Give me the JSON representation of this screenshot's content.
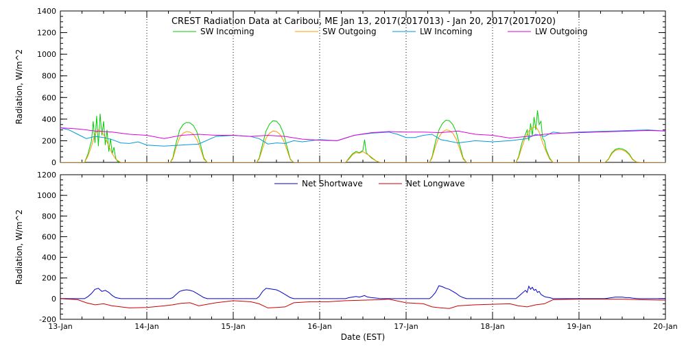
{
  "chart_data": [
    {
      "type": "line",
      "title": "CREST Radiation Data at Caribou, ME   Jan 13, 2017(2017013) - Jan 20, 2017(2017020)",
      "xlabel": "",
      "ylabel": "Radiation, W/m^2",
      "ylim": [
        0,
        1400
      ],
      "yticks": [
        "0",
        "200",
        "400",
        "600",
        "800",
        "1000",
        "1200",
        "1400"
      ],
      "xlim": [
        0,
        7
      ],
      "grid": "dotted vertical lines at day boundaries",
      "legend_position": "top",
      "series": [
        {
          "name": "SW Incoming",
          "color": "#00cc00",
          "x": [
            0,
            0.28,
            0.32,
            0.36,
            0.38,
            0.4,
            0.42,
            0.44,
            0.46,
            0.48,
            0.5,
            0.52,
            0.54,
            0.56,
            0.58,
            0.6,
            0.62,
            0.64,
            0.66,
            0.7,
            1.27,
            1.3,
            1.34,
            1.38,
            1.42,
            1.46,
            1.5,
            1.54,
            1.58,
            1.62,
            1.66,
            1.7,
            2.27,
            2.3,
            2.34,
            2.38,
            2.42,
            2.46,
            2.5,
            2.54,
            2.58,
            2.62,
            2.66,
            2.7,
            3.3,
            3.34,
            3.38,
            3.42,
            3.46,
            3.5,
            3.52,
            3.54,
            3.56,
            3.6,
            3.66,
            3.7,
            4.27,
            4.3,
            4.34,
            4.38,
            4.42,
            4.46,
            4.5,
            4.54,
            4.58,
            4.62,
            4.66,
            4.7,
            5.27,
            5.3,
            5.34,
            5.38,
            5.4,
            5.42,
            5.44,
            5.46,
            5.48,
            5.5,
            5.52,
            5.54,
            5.56,
            5.58,
            5.6,
            5.62,
            5.66,
            5.7,
            6.3,
            6.34,
            6.38,
            6.42,
            6.46,
            6.5,
            6.54,
            6.58,
            6.62,
            6.66,
            6.7,
            7
          ],
          "y": [
            0,
            0,
            80,
            200,
            380,
            180,
            430,
            150,
            450,
            250,
            380,
            160,
            300,
            100,
            220,
            80,
            140,
            40,
            10,
            0,
            0,
            40,
            180,
            300,
            350,
            370,
            365,
            340,
            280,
            170,
            40,
            0,
            0,
            40,
            170,
            290,
            355,
            385,
            380,
            345,
            270,
            150,
            30,
            0,
            0,
            40,
            80,
            100,
            90,
            110,
            210,
            90,
            70,
            40,
            10,
            0,
            0,
            50,
            190,
            300,
            360,
            390,
            385,
            350,
            280,
            160,
            40,
            0,
            0,
            50,
            180,
            260,
            300,
            200,
            360,
            250,
            420,
            300,
            480,
            350,
            380,
            220,
            200,
            120,
            40,
            0,
            0,
            30,
            90,
            120,
            130,
            125,
            110,
            80,
            30,
            5,
            0,
            0
          ]
        },
        {
          "name": "SW Outgoing",
          "color": "#ff9900",
          "x": [
            0,
            0.28,
            0.32,
            0.36,
            0.4,
            0.44,
            0.48,
            0.52,
            0.56,
            0.6,
            0.64,
            0.7,
            1.27,
            1.3,
            1.34,
            1.38,
            1.42,
            1.46,
            1.5,
            1.54,
            1.58,
            1.62,
            1.66,
            1.7,
            2.27,
            2.3,
            2.34,
            2.38,
            2.42,
            2.46,
            2.5,
            2.54,
            2.58,
            2.62,
            2.66,
            2.7,
            3.3,
            3.34,
            3.38,
            3.42,
            3.46,
            3.5,
            3.54,
            3.58,
            3.62,
            3.66,
            3.7,
            4.27,
            4.3,
            4.34,
            4.38,
            4.42,
            4.46,
            4.5,
            4.54,
            4.58,
            4.62,
            4.66,
            4.7,
            5.27,
            5.3,
            5.34,
            5.38,
            5.42,
            5.46,
            5.5,
            5.54,
            5.58,
            5.62,
            5.66,
            5.7,
            6.3,
            6.34,
            6.38,
            6.42,
            6.46,
            6.5,
            6.54,
            6.58,
            6.62,
            6.66,
            6.7,
            7
          ],
          "y": [
            0,
            0,
            60,
            150,
            260,
            300,
            280,
            230,
            150,
            80,
            30,
            0,
            0,
            30,
            140,
            230,
            270,
            285,
            280,
            260,
            210,
            130,
            30,
            0,
            0,
            30,
            130,
            225,
            270,
            290,
            285,
            260,
            205,
            120,
            25,
            0,
            0,
            30,
            70,
            90,
            85,
            100,
            80,
            60,
            35,
            10,
            0,
            0,
            40,
            150,
            235,
            280,
            300,
            295,
            270,
            215,
            125,
            30,
            0,
            0,
            40,
            140,
            230,
            290,
            320,
            330,
            280,
            180,
            100,
            30,
            0,
            0,
            25,
            80,
            110,
            120,
            115,
            100,
            70,
            25,
            5,
            0,
            0
          ]
        },
        {
          "name": "LW Incoming",
          "color": "#0099dd",
          "x": [
            0,
            0.1,
            0.2,
            0.3,
            0.4,
            0.5,
            0.6,
            0.7,
            0.8,
            0.9,
            1.0,
            1.2,
            1.4,
            1.6,
            1.8,
            2.0,
            2.2,
            2.3,
            2.4,
            2.5,
            2.6,
            2.7,
            2.8,
            3.0,
            3.2,
            3.4,
            3.6,
            3.8,
            3.9,
            4.0,
            4.1,
            4.2,
            4.3,
            4.4,
            4.6,
            4.8,
            5.0,
            5.2,
            5.4,
            5.5,
            5.6,
            5.7,
            5.8,
            6.0,
            6.2,
            6.4,
            6.6,
            6.8,
            7.0
          ],
          "y": [
            320,
            300,
            260,
            220,
            240,
            230,
            210,
            180,
            175,
            190,
            160,
            150,
            160,
            170,
            240,
            250,
            240,
            220,
            170,
            180,
            175,
            200,
            190,
            210,
            200,
            250,
            270,
            280,
            260,
            230,
            230,
            250,
            260,
            210,
            180,
            200,
            190,
            200,
            220,
            260,
            240,
            280,
            270,
            280,
            285,
            290,
            295,
            300,
            290
          ]
        },
        {
          "name": "LW Outgoing",
          "color": "#dd00dd",
          "x": [
            0,
            0.2,
            0.4,
            0.6,
            0.8,
            1.0,
            1.2,
            1.4,
            1.6,
            1.8,
            2.0,
            2.2,
            2.4,
            2.6,
            2.8,
            3.0,
            3.2,
            3.4,
            3.6,
            3.8,
            4.0,
            4.2,
            4.4,
            4.6,
            4.8,
            5.0,
            5.2,
            5.4,
            5.6,
            5.8,
            6.0,
            6.2,
            6.4,
            6.6,
            6.8,
            7.0
          ],
          "y": [
            320,
            310,
            290,
            280,
            260,
            250,
            220,
            250,
            260,
            250,
            250,
            240,
            250,
            240,
            215,
            205,
            200,
            250,
            275,
            285,
            280,
            280,
            275,
            290,
            260,
            250,
            225,
            240,
            260,
            270,
            275,
            280,
            285,
            290,
            295,
            290
          ]
        }
      ],
      "legend": [
        "SW Incoming",
        "SW Outgoing",
        "LW Incoming",
        "LW Outgoing"
      ]
    },
    {
      "type": "line",
      "title": "",
      "xlabel": "Date (EST)",
      "ylabel": "Radiation, W/m^2",
      "ylim": [
        -200,
        1200
      ],
      "yticks": [
        "-200",
        "0",
        "200",
        "400",
        "600",
        "800",
        "1000",
        "1200"
      ],
      "xlim": [
        0,
        7
      ],
      "xticks": [
        "13-Jan",
        "14-Jan",
        "15-Jan",
        "16-Jan",
        "17-Jan",
        "18-Jan",
        "19-Jan",
        "20-Jan"
      ],
      "grid": "dotted vertical lines at day boundaries",
      "legend_position": "top",
      "series": [
        {
          "name": "Net Shortwave",
          "color": "#0000cc",
          "x": [
            0,
            0.28,
            0.32,
            0.36,
            0.4,
            0.44,
            0.48,
            0.52,
            0.56,
            0.6,
            0.64,
            0.7,
            1.27,
            1.3,
            1.34,
            1.38,
            1.42,
            1.46,
            1.5,
            1.54,
            1.58,
            1.62,
            1.66,
            1.7,
            2.27,
            2.3,
            2.34,
            2.38,
            2.42,
            2.46,
            2.5,
            2.54,
            2.58,
            2.62,
            2.66,
            2.7,
            3.3,
            3.34,
            3.38,
            3.42,
            3.46,
            3.5,
            3.52,
            3.54,
            3.56,
            3.6,
            3.66,
            3.7,
            4.27,
            4.3,
            4.34,
            4.38,
            4.42,
            4.46,
            4.5,
            4.54,
            4.58,
            4.62,
            4.66,
            4.7,
            5.27,
            5.3,
            5.34,
            5.38,
            5.4,
            5.42,
            5.44,
            5.46,
            5.48,
            5.5,
            5.52,
            5.54,
            5.56,
            5.58,
            5.6,
            5.62,
            5.66,
            5.7,
            6.3,
            6.34,
            6.38,
            6.42,
            6.46,
            6.5,
            6.54,
            6.58,
            6.62,
            6.66,
            6.7,
            7
          ],
          "y": [
            0,
            0,
            20,
            50,
            90,
            100,
            70,
            80,
            60,
            30,
            10,
            0,
            0,
            10,
            40,
            70,
            80,
            85,
            80,
            70,
            50,
            30,
            10,
            0,
            0,
            20,
            70,
            100,
            95,
            90,
            85,
            70,
            50,
            30,
            10,
            0,
            0,
            10,
            15,
            20,
            15,
            25,
            30,
            20,
            15,
            10,
            5,
            0,
            0,
            20,
            60,
            125,
            115,
            100,
            90,
            70,
            50,
            25,
            10,
            0,
            0,
            20,
            50,
            80,
            60,
            120,
            90,
            110,
            80,
            90,
            60,
            70,
            40,
            30,
            20,
            15,
            10,
            0,
            0,
            5,
            10,
            15,
            15,
            15,
            10,
            10,
            5,
            2,
            0,
            0
          ]
        },
        {
          "name": "Net Longwave",
          "color": "#cc0000",
          "x": [
            0,
            0.2,
            0.3,
            0.4,
            0.5,
            0.6,
            0.7,
            0.8,
            1.0,
            1.2,
            1.3,
            1.4,
            1.5,
            1.6,
            1.8,
            2.0,
            2.2,
            2.3,
            2.4,
            2.5,
            2.6,
            2.7,
            2.9,
            3.1,
            3.3,
            3.5,
            3.7,
            3.8,
            4.0,
            4.2,
            4.3,
            4.4,
            4.5,
            4.6,
            4.8,
            5.0,
            5.2,
            5.3,
            5.4,
            5.5,
            5.6,
            5.7,
            6.0,
            6.3,
            6.5,
            6.7,
            7.0
          ],
          "y": [
            0,
            -10,
            -40,
            -60,
            -50,
            -70,
            -80,
            -90,
            -85,
            -70,
            -60,
            -45,
            -40,
            -70,
            -40,
            -20,
            -30,
            -50,
            -90,
            -85,
            -80,
            -40,
            -30,
            -30,
            -20,
            -15,
            -10,
            -5,
            -40,
            -50,
            -80,
            -90,
            -95,
            -70,
            -60,
            -55,
            -50,
            -70,
            -80,
            -60,
            -50,
            -10,
            -5,
            -5,
            -5,
            -10,
            -15
          ]
        }
      ],
      "legend": [
        "Net Shortwave",
        "Net Longwave"
      ]
    }
  ]
}
